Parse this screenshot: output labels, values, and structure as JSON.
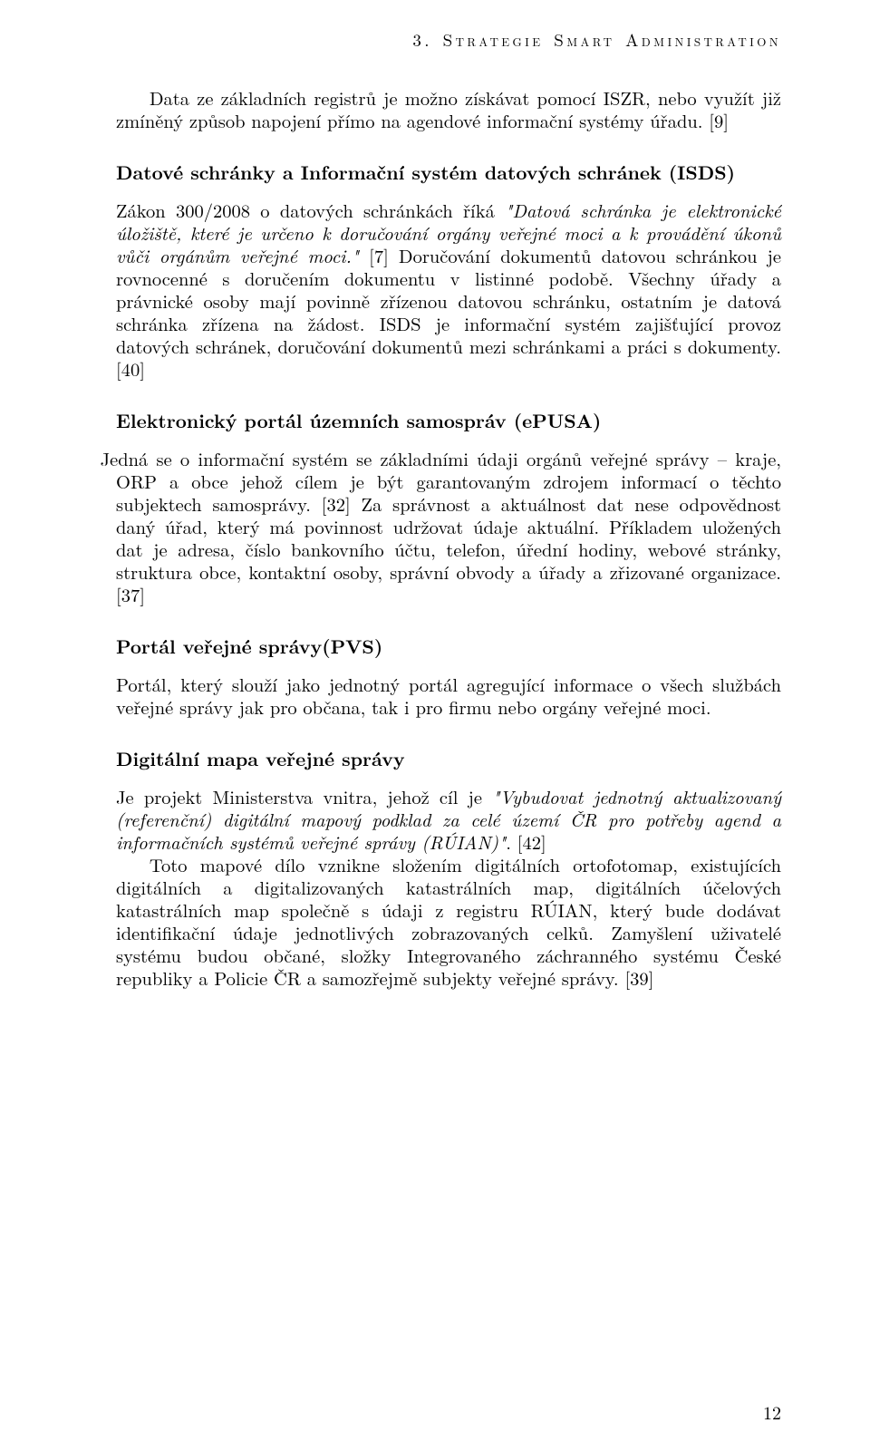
{
  "running_head": "3. Strategie Smart Administration",
  "para1_indent": "Data ze základních registrů je možno získávat pomocí ISZR, nebo využít již zmíněný způsob napojení přímo na agendové informační systémy úřadu. [9]",
  "heading1": "Datové schránky a Informační systém datových schránek (ISDS)",
  "para2_a": "Zákon 300/2008 o datových schránkách říká ",
  "para2_quote1": "\"Datová schránka je elektronické úložiště, které je určeno k doručování orgány veřejné moci a k provádění úkonů vůči orgánům veřejné moci.\"",
  "para2_b": " [7] Doručování dokumentů datovou schránkou je rovnocenné s doručením dokumentu v listinné podobě. Všechny úřady a právnické osoby mají povinně zřízenou datovou schránku, ostatním je datová schránka zřízena na žádost. ISDS je informační systém zajišťující provoz datových schránek, doručování dokumentů mezi schránkami a práci s dokumenty. [40]",
  "heading2": "Elektronický portál územních samospráv (ePUSA)",
  "para3_a": "Jedná se o informační systém se základními údaji orgánů veřejné správy – kraje, ORP a obce jehož cílem je být garantovaným zdrojem informací o těchto subjektech samosprávy. [32] Za správnost a aktuálnost dat nese odpovědnost daný úřad, který má povinnost udržovat údaje aktuální. Příkladem uložených dat je adresa, číslo bankovního účtu, telefon, úřední hodiny, webové stránky, struktura obce, kontaktní osoby, správní obvody a úřady a zřizované organizace. [37]",
  "heading3": "Portál veřejné správy(PVS)",
  "para4": "Portál, který slouží jako jednotný portál agregující informace o všech službách veřejné správy jak pro občana, tak i pro firmu nebo orgány veřejné moci.",
  "heading4": "Digitální mapa veřejné správy",
  "para5_a": "Je projekt Ministerstva vnitra, jehož cíl je ",
  "para5_quote": "\"Vybudovat jednotný aktualizovaný (referenční) digitální mapový podklad za celé území ČR pro potřeby agend a informačních systémů veřejné správy (RÚIAN)\"",
  "para5_b": ". [42]",
  "para6": "Toto mapové dílo vznikne složením digitálních ortofotomap, existujících digitálních a digitalizovaných katastrálních map, digitálních účelových katastrálních map společně s údaji z registru RÚIAN, který bude dodávat identifikační údaje jednotlivých zobrazovaných celků. Zamyšlení uživatelé systému budou občané, složky Integrovaného záchranného systému České republiky a Policie ČR a samozřejmě subjekty veřejné správy. [39]",
  "page_number": "12"
}
